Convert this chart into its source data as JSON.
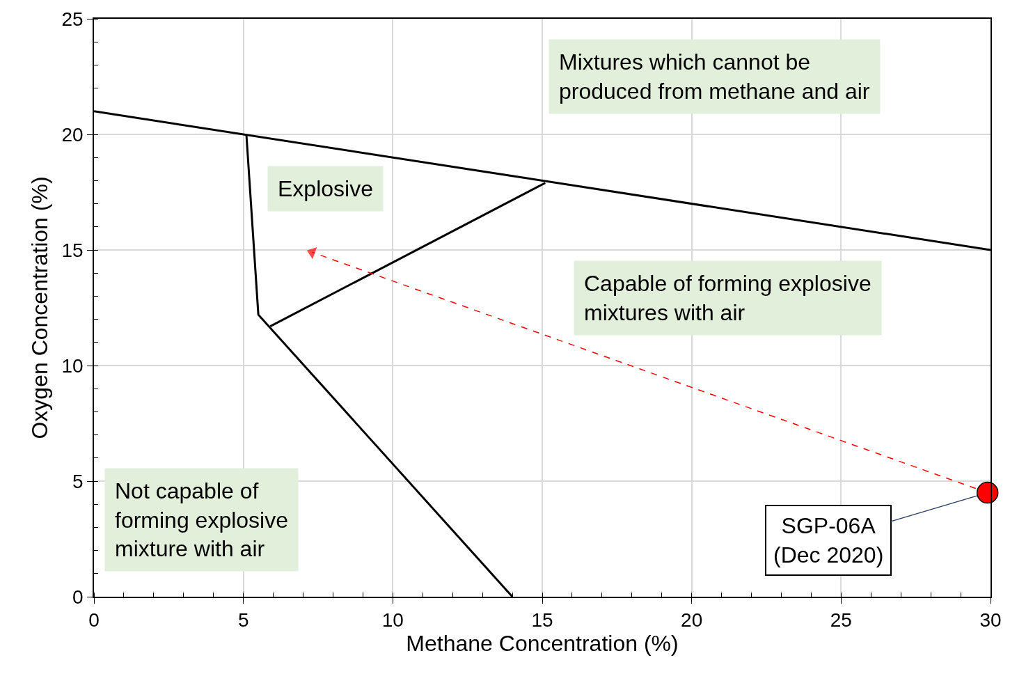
{
  "chart_data": {
    "type": "line",
    "xlabel": "Methane Concentration (%)",
    "ylabel": "Oxygen Concentration (%)",
    "xlim": [
      0,
      30
    ],
    "ylim": [
      0,
      25
    ],
    "xticks": [
      0,
      5,
      10,
      15,
      20,
      25,
      30
    ],
    "yticks": [
      0,
      5,
      10,
      15,
      20,
      25
    ],
    "grid": true,
    "marker": "none",
    "line_style": "solid",
    "series": [
      {
        "color": "#000000",
        "x": [
          0,
          30
        ],
        "values": [
          21,
          15
        ]
      },
      {
        "color": "#000000",
        "x": [
          5.1,
          5.5,
          14
        ],
        "values": [
          20,
          12.2,
          0
        ]
      },
      {
        "color": "#000000",
        "x": [
          5.9,
          15.1
        ],
        "values": [
          11.7,
          17.9
        ]
      },
      {
        "color": "#ff0000",
        "x": [
          29.9,
          7.3
        ],
        "values": [
          4.5,
          14.9
        ],
        "line_style": "dashed",
        "marker": "triangle"
      },
      {
        "type": "scatter",
        "color": "#ff0000",
        "x": [
          29.9
        ],
        "values": [
          4.5
        ],
        "marker": "circle"
      }
    ],
    "annotations": [
      "Mixtures which cannot be\nproduced from methane and air",
      "Explosive",
      "Capable of forming explosive\nmixtures with air",
      "Not capable of\nforming explosive\nmixture with air",
      {
        "text": "SGP-06A\n(Dec 2020)",
        "x": 29.9,
        "y": 4.5
      }
    ]
  }
}
